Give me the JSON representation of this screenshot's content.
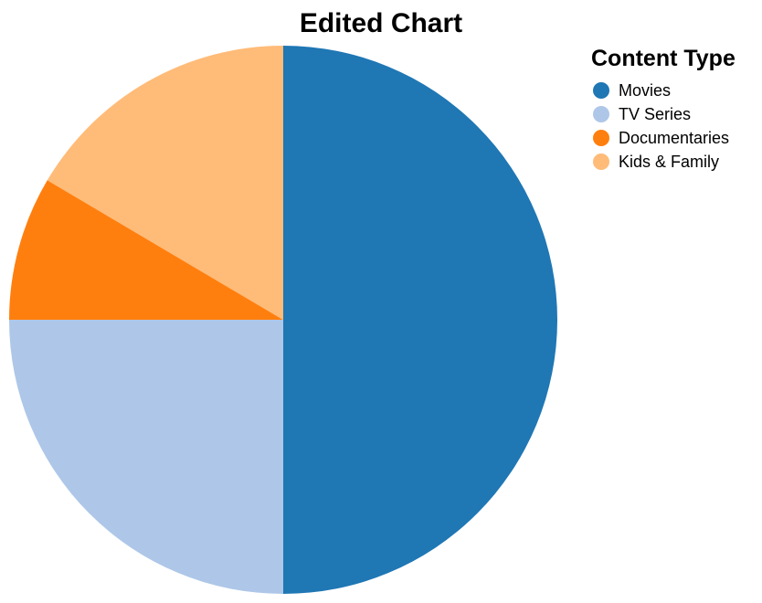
{
  "chart_data": {
    "type": "pie",
    "title": "Edited Chart",
    "legend_title": "Content Type",
    "legend_position": "right",
    "start_direction": "top",
    "direction": "clockwise",
    "slices": [
      {
        "label": "Movies",
        "value": 50,
        "color": "#1f77b4"
      },
      {
        "label": "TV Series",
        "value": 25,
        "color": "#aec7e8"
      },
      {
        "label": "Documentaries",
        "value": 8.5,
        "color": "#ff7f0e"
      },
      {
        "label": "Kids & Family",
        "value": 16.5,
        "color": "#ffbb78"
      }
    ]
  }
}
